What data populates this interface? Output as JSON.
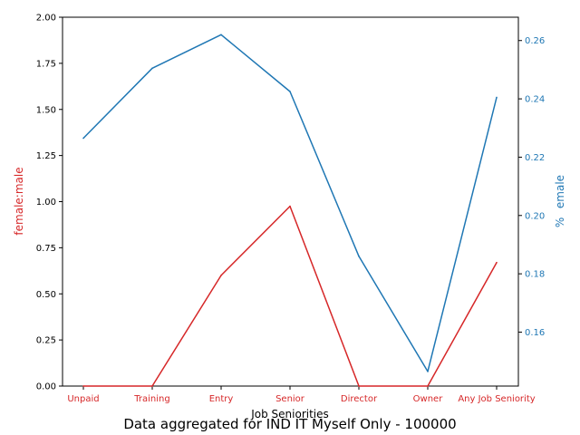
{
  "chart_data": {
    "type": "line",
    "title": "Data aggregated for IND IT Myself Only - 100000",
    "xlabel": "Job Seniorities",
    "categories": [
      "Unpaid",
      "Training",
      "Entry",
      "Senior",
      "Director",
      "Owner",
      "Any Job Seniority"
    ],
    "colors": {
      "left": "#d62728",
      "right": "#1f77b4"
    },
    "left_axis": {
      "label": "female:male",
      "ylim": [
        0,
        2
      ],
      "ticks": [
        "0.00",
        "0.25",
        "0.50",
        "0.75",
        "1.00",
        "1.25",
        "1.50",
        "1.75",
        "2.00"
      ]
    },
    "right_axis": {
      "label": "%emale",
      "ylim": [
        0.1415,
        0.268
      ],
      "ticks": [
        "0.16",
        "0.18",
        "0.20",
        "0.22",
        "0.24",
        "0.26"
      ]
    },
    "series": [
      {
        "axis": "left",
        "values": [
          0.0,
          0.0,
          0.6,
          0.975,
          0.0,
          0.0,
          0.67
        ]
      },
      {
        "axis": "right",
        "values": [
          0.2265,
          0.2505,
          0.262,
          0.2425,
          0.186,
          0.1465,
          0.2405
        ]
      }
    ],
    "grid": false,
    "legend": "none"
  }
}
